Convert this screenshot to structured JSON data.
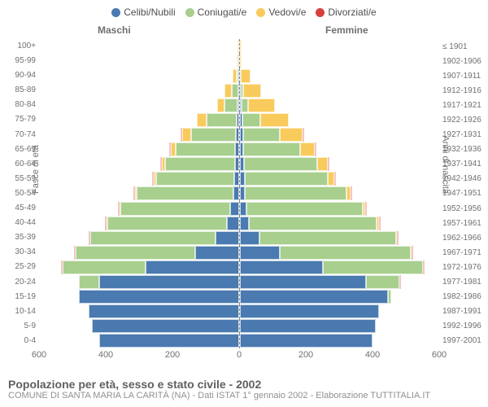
{
  "legend": [
    {
      "label": "Celibi/Nubili",
      "color": "#4a7ab0"
    },
    {
      "label": "Coniugati/e",
      "color": "#a8cf8e"
    },
    {
      "label": "Vedovi/e",
      "color": "#f9ca5c"
    },
    {
      "label": "Divorziati/e",
      "color": "#d7413c"
    }
  ],
  "headers": {
    "male": "Maschi",
    "female": "Femmine"
  },
  "yTitleLeft": "Fasce di età",
  "yTitleRight": "Anni di nascita",
  "categories": [
    "100+",
    "95-99",
    "90-94",
    "85-89",
    "80-84",
    "75-79",
    "70-74",
    "65-69",
    "60-64",
    "55-59",
    "50-54",
    "45-49",
    "40-44",
    "35-39",
    "30-34",
    "25-29",
    "20-24",
    "15-19",
    "10-14",
    "5-9",
    "0-4"
  ],
  "birthYears": [
    "≤ 1901",
    "1902-1906",
    "1907-1911",
    "1912-1916",
    "1917-1921",
    "1922-1926",
    "1927-1931",
    "1932-1936",
    "1937-1941",
    "1942-1946",
    "1947-1951",
    "1952-1956",
    "1957-1961",
    "1962-1966",
    "1967-1971",
    "1972-1976",
    "1977-1981",
    "1982-1986",
    "1987-1991",
    "1992-1996",
    "1997-2001"
  ],
  "xTicks": [
    600,
    400,
    200,
    0,
    200,
    400,
    600
  ],
  "xMax": 600,
  "colors": {
    "single": "#4a7ab0",
    "married": "#a8cf8e",
    "widowed": "#f9ca5c",
    "divorced": "#d7413c",
    "grid": "#ffffff",
    "axis": "#888888",
    "bg": "#ffffff",
    "text": "#707070"
  },
  "male": [
    {
      "single": 0,
      "married": 0,
      "widowed": 2,
      "divorced": 0
    },
    {
      "single": 0,
      "married": 2,
      "widowed": 2,
      "divorced": 0
    },
    {
      "single": 2,
      "married": 4,
      "widowed": 12,
      "divorced": 0
    },
    {
      "single": 2,
      "married": 20,
      "widowed": 20,
      "divorced": 0
    },
    {
      "single": 4,
      "married": 40,
      "widowed": 20,
      "divorced": 0
    },
    {
      "single": 6,
      "married": 90,
      "widowed": 30,
      "divorced": 0
    },
    {
      "single": 8,
      "married": 135,
      "widowed": 27,
      "divorced": 2
    },
    {
      "single": 10,
      "married": 180,
      "widowed": 15,
      "divorced": 2
    },
    {
      "single": 12,
      "married": 210,
      "widowed": 10,
      "divorced": 3
    },
    {
      "single": 14,
      "married": 235,
      "widowed": 7,
      "divorced": 4
    },
    {
      "single": 16,
      "married": 290,
      "widowed": 5,
      "divorced": 5
    },
    {
      "single": 25,
      "married": 330,
      "widowed": 3,
      "divorced": 6
    },
    {
      "single": 35,
      "married": 360,
      "widowed": 2,
      "divorced": 5
    },
    {
      "single": 70,
      "married": 375,
      "widowed": 2,
      "divorced": 5
    },
    {
      "single": 130,
      "married": 360,
      "widowed": 0,
      "divorced": 4
    },
    {
      "single": 280,
      "married": 250,
      "widowed": 0,
      "divorced": 4
    },
    {
      "single": 420,
      "married": 60,
      "widowed": 0,
      "divorced": 0
    },
    {
      "single": 480,
      "married": 0,
      "widowed": 0,
      "divorced": 0
    },
    {
      "single": 450,
      "married": 0,
      "widowed": 0,
      "divorced": 0
    },
    {
      "single": 440,
      "married": 0,
      "widowed": 0,
      "divorced": 0
    },
    {
      "single": 420,
      "married": 0,
      "widowed": 0,
      "divorced": 0
    }
  ],
  "female": [
    {
      "single": 0,
      "married": 0,
      "widowed": 4,
      "divorced": 0
    },
    {
      "single": 1,
      "married": 0,
      "widowed": 6,
      "divorced": 0
    },
    {
      "single": 2,
      "married": 2,
      "widowed": 30,
      "divorced": 0
    },
    {
      "single": 4,
      "married": 6,
      "widowed": 55,
      "divorced": 0
    },
    {
      "single": 6,
      "married": 20,
      "widowed": 80,
      "divorced": 0
    },
    {
      "single": 8,
      "married": 55,
      "widowed": 85,
      "divorced": 0
    },
    {
      "single": 10,
      "married": 110,
      "widowed": 70,
      "divorced": 2
    },
    {
      "single": 12,
      "married": 170,
      "widowed": 45,
      "divorced": 3
    },
    {
      "single": 14,
      "married": 220,
      "widowed": 30,
      "divorced": 4
    },
    {
      "single": 15,
      "married": 250,
      "widowed": 20,
      "divorced": 5
    },
    {
      "single": 16,
      "married": 305,
      "widowed": 12,
      "divorced": 5
    },
    {
      "single": 20,
      "married": 350,
      "widowed": 8,
      "divorced": 5
    },
    {
      "single": 28,
      "married": 385,
      "widowed": 5,
      "divorced": 5
    },
    {
      "single": 60,
      "married": 410,
      "widowed": 3,
      "divorced": 5
    },
    {
      "single": 120,
      "married": 395,
      "widowed": 2,
      "divorced": 5
    },
    {
      "single": 250,
      "married": 300,
      "widowed": 0,
      "divorced": 5
    },
    {
      "single": 380,
      "married": 100,
      "widowed": 0,
      "divorced": 2
    },
    {
      "single": 445,
      "married": 10,
      "widowed": 0,
      "divorced": 0
    },
    {
      "single": 420,
      "married": 0,
      "widowed": 0,
      "divorced": 0
    },
    {
      "single": 410,
      "married": 0,
      "widowed": 0,
      "divorced": 0
    },
    {
      "single": 400,
      "married": 0,
      "widowed": 0,
      "divorced": 0
    }
  ],
  "footer": {
    "title": "Popolazione per età, sesso e stato civile - 2002",
    "sub": "COMUNE DI SANTA MARIA LA CARITÀ (NA) - Dati ISTAT 1° gennaio 2002 - Elaborazione TUTTITALIA.IT"
  },
  "style": {
    "fontFamily": "Arial, Helvetica, sans-serif",
    "legendFontSize": 12,
    "axisFontSize": 10,
    "titleFontSize": 14
  }
}
